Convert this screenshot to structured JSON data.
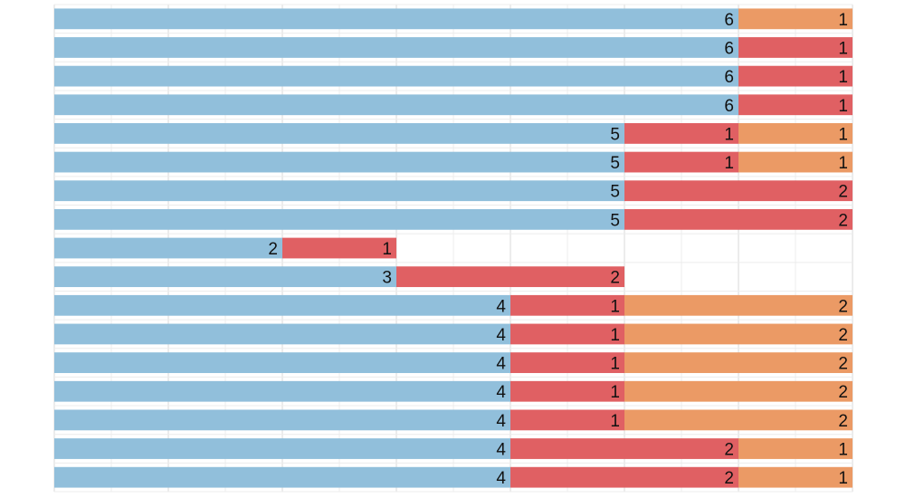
{
  "chart_data": {
    "type": "bar",
    "orientation": "horizontal",
    "stacked": true,
    "title": "",
    "xlabel": "",
    "ylabel": "",
    "xlim": [
      0,
      7
    ],
    "grid": true,
    "legend": "none",
    "series": [
      {
        "color": "#91bfdb",
        "values": [
          6,
          6,
          6,
          6,
          5,
          5,
          5,
          5,
          2,
          3,
          4,
          4,
          4,
          4,
          4,
          4,
          4
        ]
      },
      {
        "color": "#e06063",
        "values": [
          0,
          1,
          1,
          1,
          1,
          1,
          2,
          2,
          1,
          2,
          1,
          1,
          1,
          1,
          1,
          2,
          2
        ]
      },
      {
        "color": "#eb9a65",
        "values": [
          1,
          0,
          0,
          0,
          1,
          1,
          0,
          0,
          0,
          0,
          2,
          2,
          2,
          2,
          2,
          1,
          1
        ]
      }
    ]
  }
}
